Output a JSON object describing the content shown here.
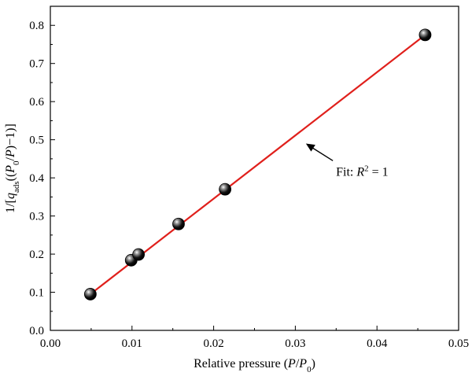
{
  "chart_data": {
    "type": "scatter",
    "xlabel": "Relative pressure (P/P0)",
    "ylabel": "1/[qads((P0/P)−1)]",
    "xlim": [
      0.0,
      0.05
    ],
    "ylim": [
      0.0,
      0.85
    ],
    "x_ticks": [
      "0.00",
      "0.01",
      "0.02",
      "0.03",
      "0.04",
      "0.05"
    ],
    "y_ticks": [
      "0.0",
      "0.1",
      "0.2",
      "0.3",
      "0.4",
      "0.5",
      "0.6",
      "0.7",
      "0.8"
    ],
    "grid": false,
    "series": [
      {
        "points": [
          {
            "x": 0.0049,
            "y": 0.095
          },
          {
            "x": 0.0099,
            "y": 0.184
          },
          {
            "x": 0.0108,
            "y": 0.199
          },
          {
            "x": 0.0157,
            "y": 0.279
          },
          {
            "x": 0.0214,
            "y": 0.37
          },
          {
            "x": 0.0459,
            "y": 0.775
          }
        ],
        "marker_color": "#111111"
      }
    ],
    "fit_line": {
      "x": [
        0.0049,
        0.0459
      ],
      "y": [
        0.095,
        0.775
      ],
      "color": "#e0201c"
    },
    "annotation": {
      "text_prefix": "Fit: ",
      "text_var": "R",
      "text_sup": "2",
      "text_suffix": " = 1",
      "arrow_to": {
        "x": 0.0313,
        "y": 0.49
      },
      "arrow_from": {
        "x": 0.0346,
        "y": 0.445
      }
    }
  }
}
